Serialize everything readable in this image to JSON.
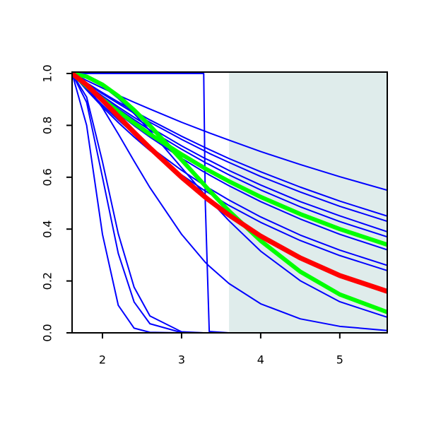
{
  "chart_data": {
    "type": "line",
    "x": [
      1.616,
      1.8,
      2,
      2.2,
      2.4,
      2.6,
      3,
      3.28,
      3.3,
      3.35,
      3.6,
      4,
      4.5,
      5,
      5.6
    ],
    "series": [
      {
        "color": "#0000ff",
        "values": [
          1,
          0.973,
          0.944,
          0.916,
          0.889,
          0.863,
          0.812,
          0.779,
          0.777,
          0.771,
          0.743,
          0.699,
          0.649,
          0.602,
          0.55
        ]
      },
      {
        "color": "#0000ff",
        "values": [
          1,
          0.964,
          0.926,
          0.89,
          0.855,
          0.821,
          0.758,
          0.717,
          0.714,
          0.707,
          0.672,
          0.621,
          0.562,
          0.508,
          0.45
        ]
      },
      {
        "color": "#0000ff",
        "values": [
          1,
          0.962,
          0.922,
          0.884,
          0.847,
          0.812,
          0.746,
          0.703,
          0.7,
          0.692,
          0.657,
          0.603,
          0.543,
          0.488,
          0.43
        ]
      },
      {
        "color": "#0000ff",
        "values": [
          1,
          0.957,
          0.913,
          0.871,
          0.831,
          0.793,
          0.721,
          0.675,
          0.672,
          0.665,
          0.626,
          0.57,
          0.506,
          0.451,
          0.39
        ]
      },
      {
        "color": "#0000ff",
        "values": [
          1,
          0.955,
          0.908,
          0.864,
          0.822,
          0.782,
          0.708,
          0.66,
          0.656,
          0.649,
          0.609,
          0.551,
          0.486,
          0.429,
          0.37
        ]
      },
      {
        "color": "#0000ff",
        "values": [
          1,
          0.949,
          0.896,
          0.846,
          0.799,
          0.755,
          0.673,
          0.621,
          0.618,
          0.609,
          0.567,
          0.506,
          0.439,
          0.38,
          0.32
        ]
      },
      {
        "color": "#0000ff",
        "values": [
          1,
          0.94,
          0.878,
          0.821,
          0.767,
          0.717,
          0.627,
          0.57,
          0.566,
          0.557,
          0.512,
          0.447,
          0.377,
          0.319,
          0.26
        ]
      },
      {
        "color": "#0000ff",
        "values": [
          1,
          0.936,
          0.871,
          0.811,
          0.755,
          0.703,
          0.609,
          0.551,
          0.547,
          0.538,
          0.491,
          0.426,
          0.356,
          0.298,
          0.24
        ]
      },
      {
        "color": "#0000ff",
        "values": [
          1,
          0.986,
          0.952,
          0.904,
          0.845,
          0.779,
          0.637,
          0.538,
          0.531,
          0.513,
          0.432,
          0.315,
          0.201,
          0.12,
          0.06
        ]
      },
      {
        "color": "#0000ff",
        "values": [
          1,
          0.954,
          0.868,
          0.767,
          0.662,
          0.56,
          0.38,
          0.279,
          0.272,
          0.257,
          0.19,
          0.112,
          0.054,
          0.025,
          0.009
        ]
      },
      {
        "color": "#0000ff",
        "values": [
          1,
          0.8,
          0.38,
          0.106,
          0.018,
          0.002,
          0,
          0,
          0,
          0,
          0,
          0,
          0,
          0,
          0
        ]
      },
      {
        "color": "#0000ff",
        "values": [
          1,
          0.889,
          0.6,
          0.306,
          0.119,
          0.035,
          0.001,
          0,
          0,
          0,
          0,
          0,
          0,
          0,
          0
        ]
      },
      {
        "color": "#0000ff",
        "values": [
          1,
          0.909,
          0.66,
          0.382,
          0.176,
          0.065,
          0.004,
          0,
          0,
          0,
          0,
          0,
          0,
          0,
          0
        ]
      },
      {
        "color": "#0000ff",
        "values": [
          1,
          1,
          1,
          1,
          1,
          1,
          1,
          1,
          0.5,
          0.005,
          0,
          0,
          0,
          0,
          0
        ]
      },
      {
        "color": "#00ff00",
        "width": 6,
        "values": [
          1,
          0.951,
          0.901,
          0.854,
          0.809,
          0.766,
          0.688,
          0.637,
          0.633,
          0.625,
          0.584,
          0.524,
          0.458,
          0.4,
          0.34
        ]
      },
      {
        "color": "#00ff00",
        "width": 6,
        "values": [
          1,
          0.988,
          0.957,
          0.913,
          0.859,
          0.799,
          0.667,
          0.573,
          0.566,
          0.549,
          0.47,
          0.355,
          0.236,
          0.148,
          0.08
        ]
      },
      {
        "color": "#ff0000",
        "width": 7,
        "values": [
          1,
          0.956,
          0.897,
          0.835,
          0.773,
          0.713,
          0.6,
          0.528,
          0.523,
          0.511,
          0.454,
          0.373,
          0.289,
          0.221,
          0.16
        ]
      }
    ],
    "shaded_region": {
      "xmin": 3.6,
      "color": "#dfeceb"
    },
    "xlim": [
      1.616,
      5.6
    ],
    "ylim": [
      0,
      1
    ],
    "xticks": [
      2,
      3,
      4,
      5
    ],
    "yticks": [
      {
        "value": 0,
        "label": "0.0"
      },
      0.2,
      0.4,
      0.6,
      0.8,
      {
        "value": 1,
        "label": "1.0"
      }
    ]
  }
}
